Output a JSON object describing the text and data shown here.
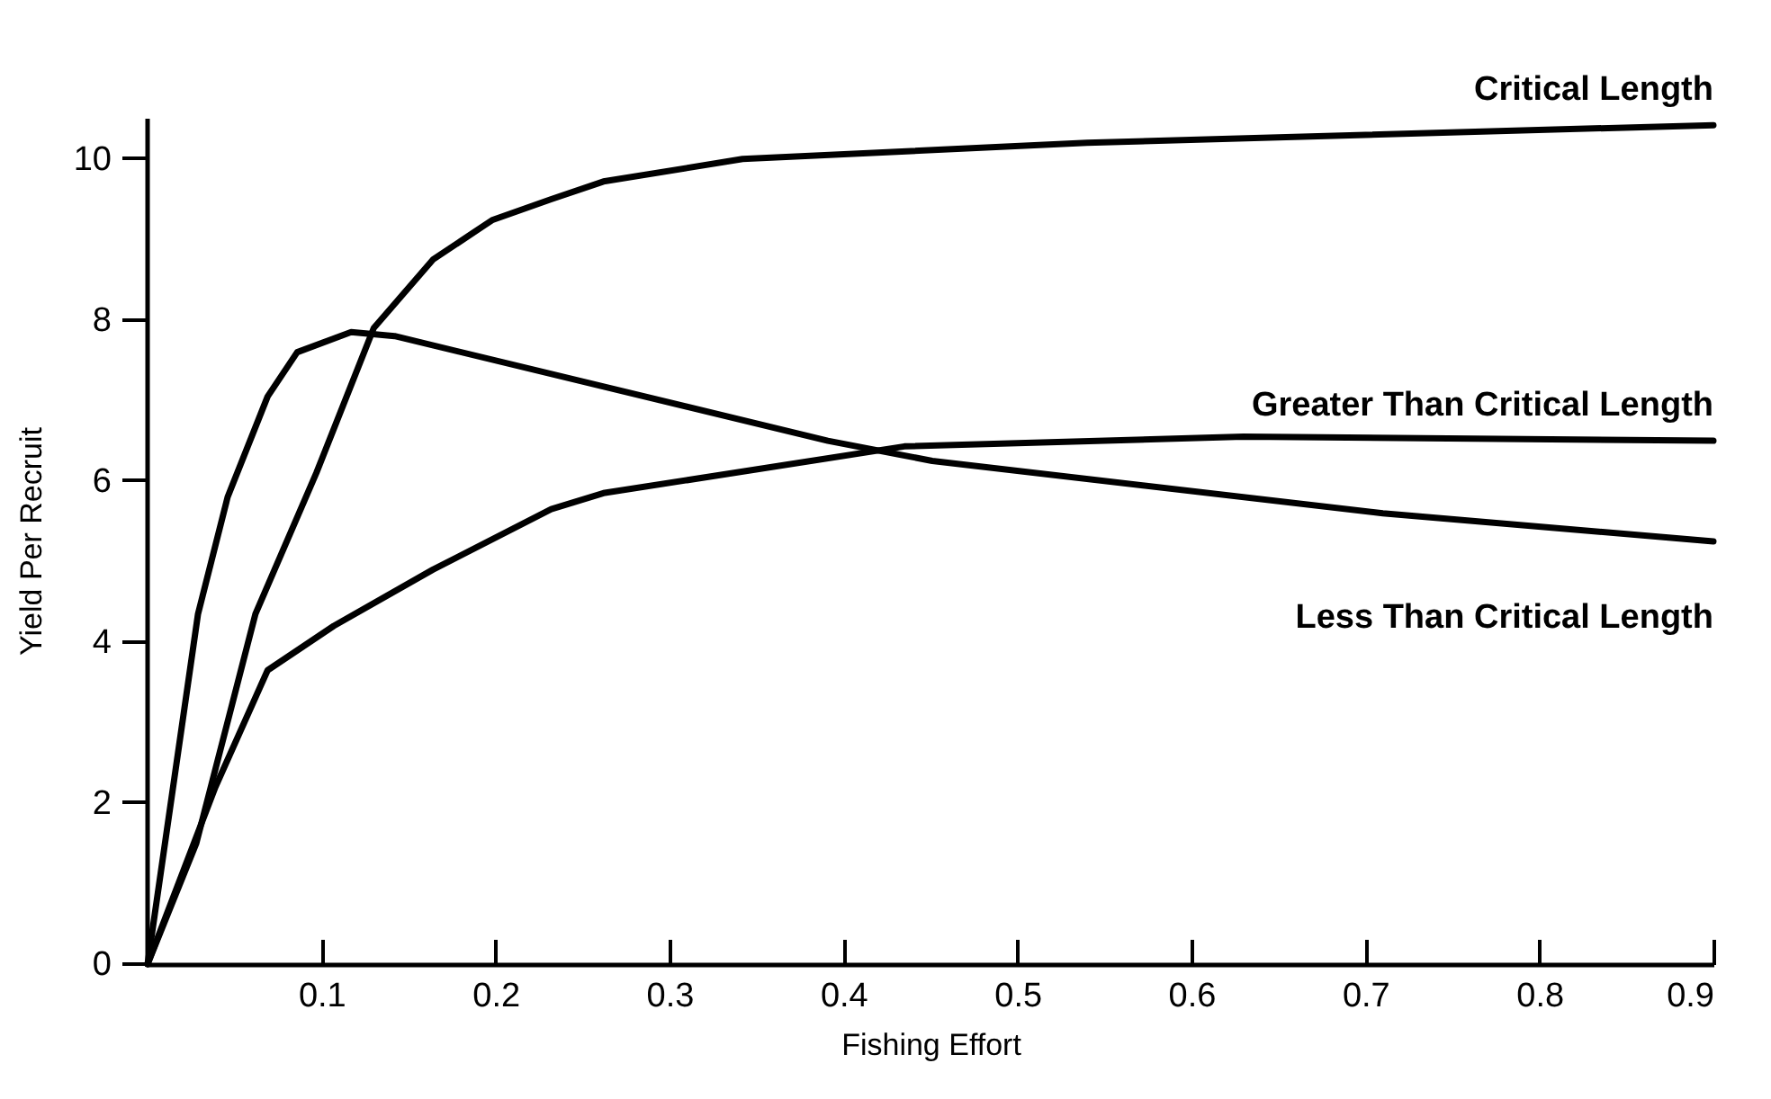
{
  "chart_data": {
    "type": "line",
    "xlabel": "Fishing Effort",
    "ylabel": "Yield Per Recruit",
    "xlim": [
      0,
      0.9
    ],
    "ylim": [
      0,
      10.5
    ],
    "xticks": [
      0.1,
      0.2,
      0.3,
      0.4,
      0.5,
      0.6,
      0.7,
      0.8,
      0.9
    ],
    "yticks": [
      0,
      2,
      4,
      6,
      8,
      10
    ],
    "grid": false,
    "legend": false,
    "marker": "none",
    "line_style": "solid",
    "series": [
      {
        "name": "Critical Length",
        "color": "#000000",
        "x": [
          0,
          0.028,
          0.062,
          0.097,
          0.13,
          0.164,
          0.198,
          0.232,
          0.262,
          0.342,
          0.54,
          0.7,
          0.9
        ],
        "values": [
          0,
          1.5,
          4.35,
          6.1,
          7.9,
          8.75,
          9.24,
          9.5,
          9.72,
          10.0,
          10.2,
          10.3,
          10.42
        ]
      },
      {
        "name": "Greater Than Critical Length",
        "color": "#000000",
        "x": [
          0,
          0.039,
          0.069,
          0.107,
          0.164,
          0.232,
          0.262,
          0.435,
          0.63,
          0.9
        ],
        "values": [
          0,
          2.2,
          3.65,
          4.2,
          4.9,
          5.65,
          5.85,
          6.43,
          6.55,
          6.5
        ]
      },
      {
        "name": "Less Than Critical Length",
        "color": "#000000",
        "x": [
          0,
          0.029,
          0.046,
          0.069,
          0.086,
          0.117,
          0.142,
          0.391,
          0.451,
          0.71,
          0.9
        ],
        "values": [
          0,
          4.35,
          5.8,
          7.05,
          7.6,
          7.85,
          7.8,
          6.5,
          6.25,
          5.6,
          5.25
        ]
      }
    ]
  }
}
